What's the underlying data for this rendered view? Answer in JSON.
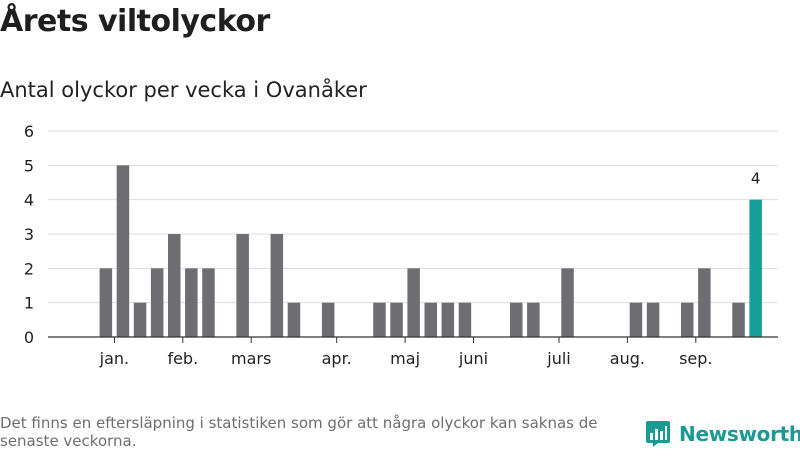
{
  "header": {
    "title": "Årets viltolyckor",
    "subtitle": "Antal olyckor per vecka i Ovanåker"
  },
  "footer": {
    "note": "Det finns en eftersläpning i statistiken som gör att några olyckor kan saknas de senaste veckorna.",
    "brand": "Newsworthy",
    "brand_icon": "bar-chart-icon"
  },
  "colors": {
    "bar": "#6e6d72",
    "highlight": "#14a098",
    "grid": "#dddddd",
    "axis": "#333333",
    "brand": "#1a9a92"
  },
  "chart_data": {
    "type": "bar",
    "title": "Antal olyckor per vecka i Ovanåker",
    "xlabel": "",
    "ylabel": "",
    "ylim": [
      0,
      6
    ],
    "yticks": [
      0,
      1,
      2,
      3,
      4,
      5,
      6
    ],
    "grid": true,
    "weeks": [
      1,
      2,
      3,
      4,
      5,
      6,
      7,
      8,
      9,
      10,
      11,
      12,
      13,
      14,
      15,
      16,
      17,
      18,
      19,
      20,
      21,
      22,
      23,
      24,
      25,
      26,
      27,
      28,
      29,
      30,
      31,
      32,
      33,
      34,
      35,
      36,
      37,
      38,
      39,
      40
    ],
    "values": [
      0,
      2,
      5,
      1,
      2,
      3,
      2,
      2,
      0,
      3,
      0,
      3,
      1,
      0,
      1,
      0,
      0,
      1,
      1,
      2,
      1,
      1,
      1,
      0,
      0,
      1,
      1,
      0,
      2,
      0,
      0,
      0,
      1,
      1,
      0,
      1,
      2,
      0,
      1,
      4
    ],
    "highlight_index": 39,
    "data_labels": [
      {
        "index": 39,
        "text": "4"
      }
    ],
    "month_labels": [
      {
        "label": "jan.",
        "week": 2.5
      },
      {
        "label": "feb.",
        "week": 6.5
      },
      {
        "label": "mars",
        "week": 10.5
      },
      {
        "label": "apr.",
        "week": 15.5
      },
      {
        "label": "maj",
        "week": 19.5
      },
      {
        "label": "juni",
        "week": 23.5
      },
      {
        "label": "juli",
        "week": 28.5
      },
      {
        "label": "aug.",
        "week": 32.5
      },
      {
        "label": "sep.",
        "week": 36.5
      }
    ]
  }
}
